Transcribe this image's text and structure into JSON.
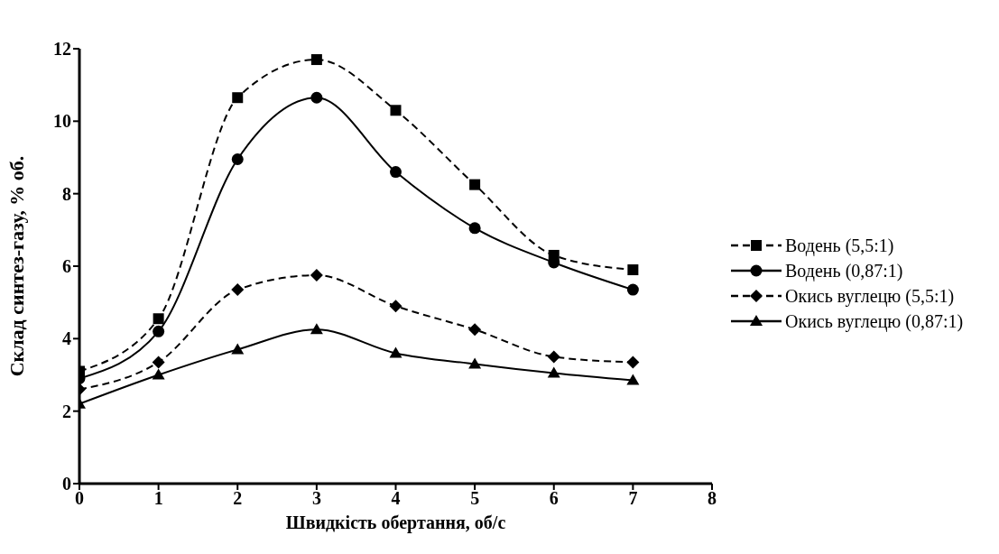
{
  "chart_data": {
    "type": "line",
    "xlabel": "Швидкість обертання, об/с",
    "ylabel": "Склад синтез-газу, % об.",
    "x": [
      0,
      1,
      2,
      3,
      4,
      5,
      6,
      7
    ],
    "xlim": [
      0,
      8
    ],
    "xticks": [
      0,
      1,
      2,
      3,
      4,
      5,
      6,
      7,
      8
    ],
    "ylim": [
      0,
      12
    ],
    "yticks": [
      0,
      2,
      4,
      6,
      8,
      10,
      12
    ],
    "grid": false,
    "legend": "right",
    "series": [
      {
        "name": "Водень (5,5:1)",
        "color": "#000000",
        "marker": "square",
        "line_style": "dashed",
        "values": [
          3.1,
          4.55,
          10.65,
          11.7,
          10.3,
          8.25,
          6.3,
          5.9
        ]
      },
      {
        "name": "Водень (0,87:1)",
        "color": "#000000",
        "marker": "circle",
        "line_style": "solid",
        "values": [
          2.9,
          4.2,
          8.95,
          10.65,
          8.6,
          7.05,
          6.1,
          5.35
        ]
      },
      {
        "name": "Окись вуглецю (5,5:1)",
        "color": "#000000",
        "marker": "diamond",
        "line_style": "dashed",
        "values": [
          2.6,
          3.35,
          5.35,
          5.75,
          4.9,
          4.25,
          3.5,
          3.35
        ]
      },
      {
        "name": "Окись вуглецю (0,87:1)",
        "color": "#000000",
        "marker": "triangle",
        "line_style": "solid",
        "values": [
          2.2,
          3.0,
          3.7,
          4.25,
          3.6,
          3.3,
          3.05,
          2.85
        ]
      }
    ]
  }
}
